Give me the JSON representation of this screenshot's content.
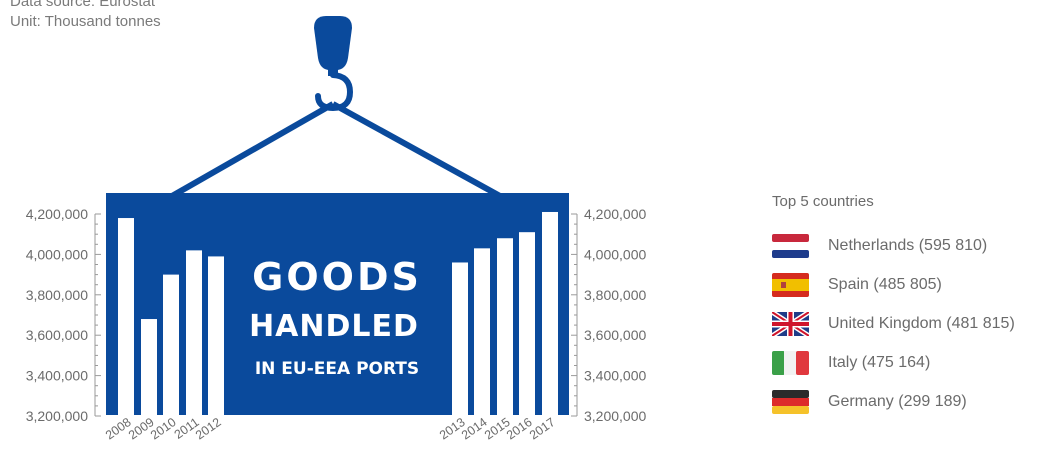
{
  "source": {
    "line1": "Data source: Eurostat",
    "line2": "Unit: Thousand tonnes"
  },
  "graphic": {
    "title_line1": "GOODS",
    "title_line2": "HANDLED",
    "title_line3": "IN EU-EEA PORTS",
    "container_color": "#0a4a9c",
    "bar_color": "#ffffff"
  },
  "legend": {
    "title": "Top 5 countries",
    "items": [
      {
        "label": "Netherlands (595 810)",
        "flag": "netherlands-flag-icon"
      },
      {
        "label": "Spain (485 805)",
        "flag": "spain-flag-icon"
      },
      {
        "label": "United Kingdom (481 815)",
        "flag": "uk-flag-icon"
      },
      {
        "label": "Italy (475 164)",
        "flag": "italy-flag-icon"
      },
      {
        "label": "Germany (299 189)",
        "flag": "germany-flag-icon"
      }
    ]
  },
  "chart_data": {
    "type": "bar",
    "title": "GOODS HANDLED IN EU-EEA PORTS",
    "ylabel": "",
    "xlabel": "",
    "ylim": [
      3200000,
      4200000
    ],
    "y_ticks": [
      "3,200,000",
      "3,400,000",
      "3,600,000",
      "3,800,000",
      "4,000,000",
      "4,200,000"
    ],
    "y_tick_values": [
      3200000,
      3400000,
      3600000,
      3800000,
      4000000,
      4200000
    ],
    "categories": [
      "2008",
      "2009",
      "2010",
      "2011",
      "2012",
      "2013",
      "2014",
      "2015",
      "2016",
      "2017"
    ],
    "values": [
      4180000,
      3680000,
      3900000,
      4020000,
      3990000,
      3960000,
      4030000,
      4080000,
      4110000,
      4210000
    ],
    "grid": false,
    "legend": "right"
  }
}
